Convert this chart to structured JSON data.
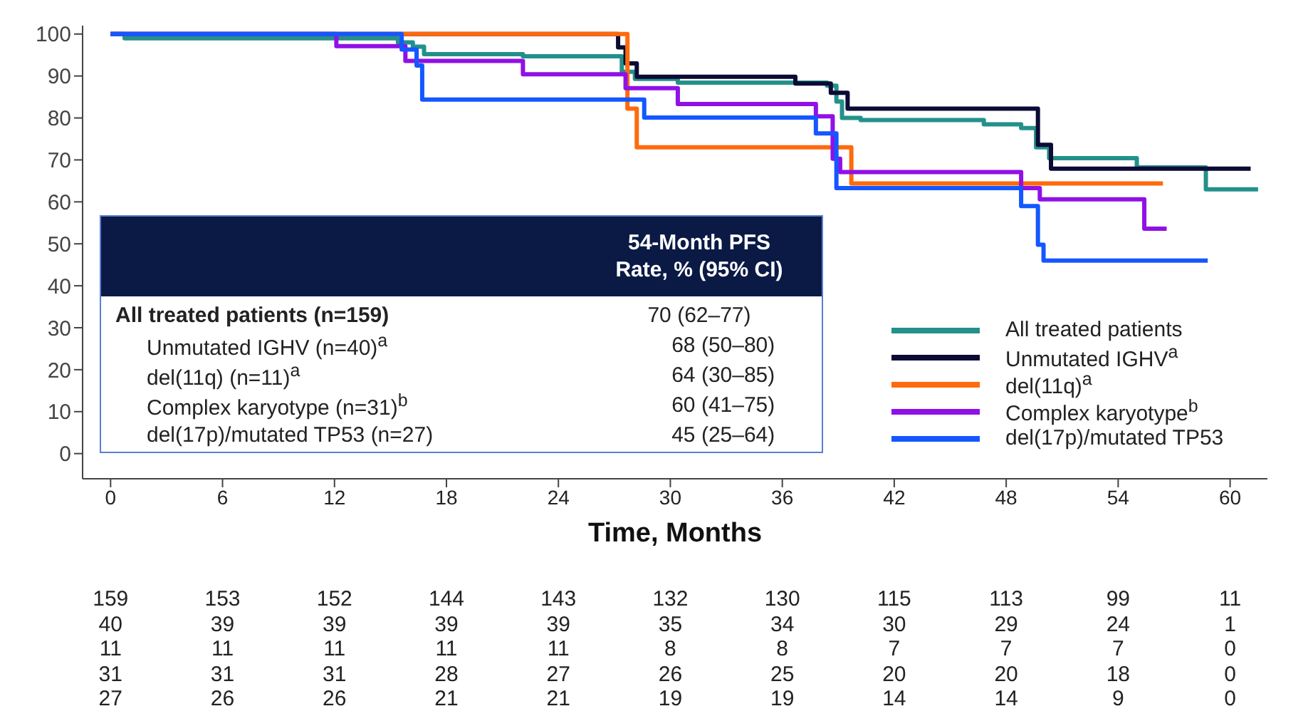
{
  "chart_data": {
    "type": "step",
    "xlabel": "Time, Months",
    "xlim": [
      -1.5,
      62
    ],
    "xticks": [
      0,
      6,
      12,
      18,
      24,
      30,
      36,
      42,
      48,
      54,
      60
    ],
    "ylim": [
      -6,
      102
    ],
    "yticks": [
      0,
      10,
      20,
      30,
      40,
      50,
      60,
      70,
      80,
      90,
      100
    ],
    "grid": false,
    "legend": "bottom right",
    "line_style": "solid",
    "series": [
      {
        "name": "All treated patients",
        "color": "#23918a",
        "x": [
          0,
          0.75,
          15.4,
          16.2,
          16.8,
          22.1,
          27.4,
          28.1,
          30.4,
          38.4,
          38.9,
          39.2,
          40.2,
          46.8,
          48.8,
          49.6,
          50.3,
          55,
          58.7,
          61.5
        ],
        "values": [
          100,
          99,
          98,
          97,
          95.2,
          94.7,
          91,
          89.3,
          88.4,
          87.7,
          83.9,
          80,
          79.5,
          78.5,
          77.6,
          73,
          70.4,
          68.2,
          63,
          63
        ]
      },
      {
        "name": "Unmutated IGHV$^{a}$",
        "color": "#0b0b35",
        "x": [
          0,
          27.2,
          27.6,
          28.2,
          36.7,
          38.6,
          39.5,
          49.7,
          50.4,
          61.1
        ],
        "values": [
          100,
          96.8,
          93,
          89.8,
          88.2,
          86,
          82.2,
          73.6,
          67.9,
          67.9
        ]
      },
      {
        "name": "del(11q)$^{a}$",
        "color": "#ff6a0d",
        "x": [
          0,
          27.7,
          28.2,
          39.7,
          56.4
        ],
        "values": [
          100,
          82.2,
          73,
          64.4,
          64.4
        ]
      },
      {
        "name": "Complex karyotype$^{b}$",
        "color": "#9010e6",
        "x": [
          0,
          12.1,
          15.8,
          22.1,
          27.6,
          30.4,
          37.8,
          38.7,
          39.1,
          48.8,
          49.8,
          55.4,
          56.6
        ],
        "values": [
          100,
          97.1,
          93.6,
          90.4,
          87.1,
          83.3,
          80.4,
          70.3,
          67.1,
          63.3,
          60.6,
          53.6,
          53.6
        ]
      },
      {
        "name": "del(17p)/mutated TP53",
        "color": "#1457ff",
        "x": [
          0,
          15.6,
          16.4,
          16.7,
          28.6,
          37.8,
          38.9,
          48.8,
          49.7,
          50,
          58.8
        ],
        "values": [
          100,
          96.3,
          92.5,
          84.4,
          80.1,
          76.3,
          63.3,
          59,
          49.8,
          46,
          46
        ]
      }
    ],
    "annotations": [
      "54-Month PFS Rate, % (95% CI)",
      "All treated patients (n=159)",
      "70 (62–77)",
      "Unmutated IGHV (n=40)$^{a}$",
      "68 (50–80)",
      "del(11q) (n=11)$^{a}$",
      "64 (30–85)",
      "Complex karyotype (n=31)$^{b}$",
      "60 (41–75)",
      "del(17p)/mutated TP53 (n=27)",
      "45 (25–64)",
      "159 153 152 144 143 132 130 115 113 99 11",
      "40 39 39 39 39 35 34 30 29 24 1",
      "11 11 11 11 11 8 8 7 7 7 0",
      "31 31 31 28 27 26 25 20 20 18 0",
      "27 26 26 21 21 19 19 14 14 9 0"
    ]
  }
}
